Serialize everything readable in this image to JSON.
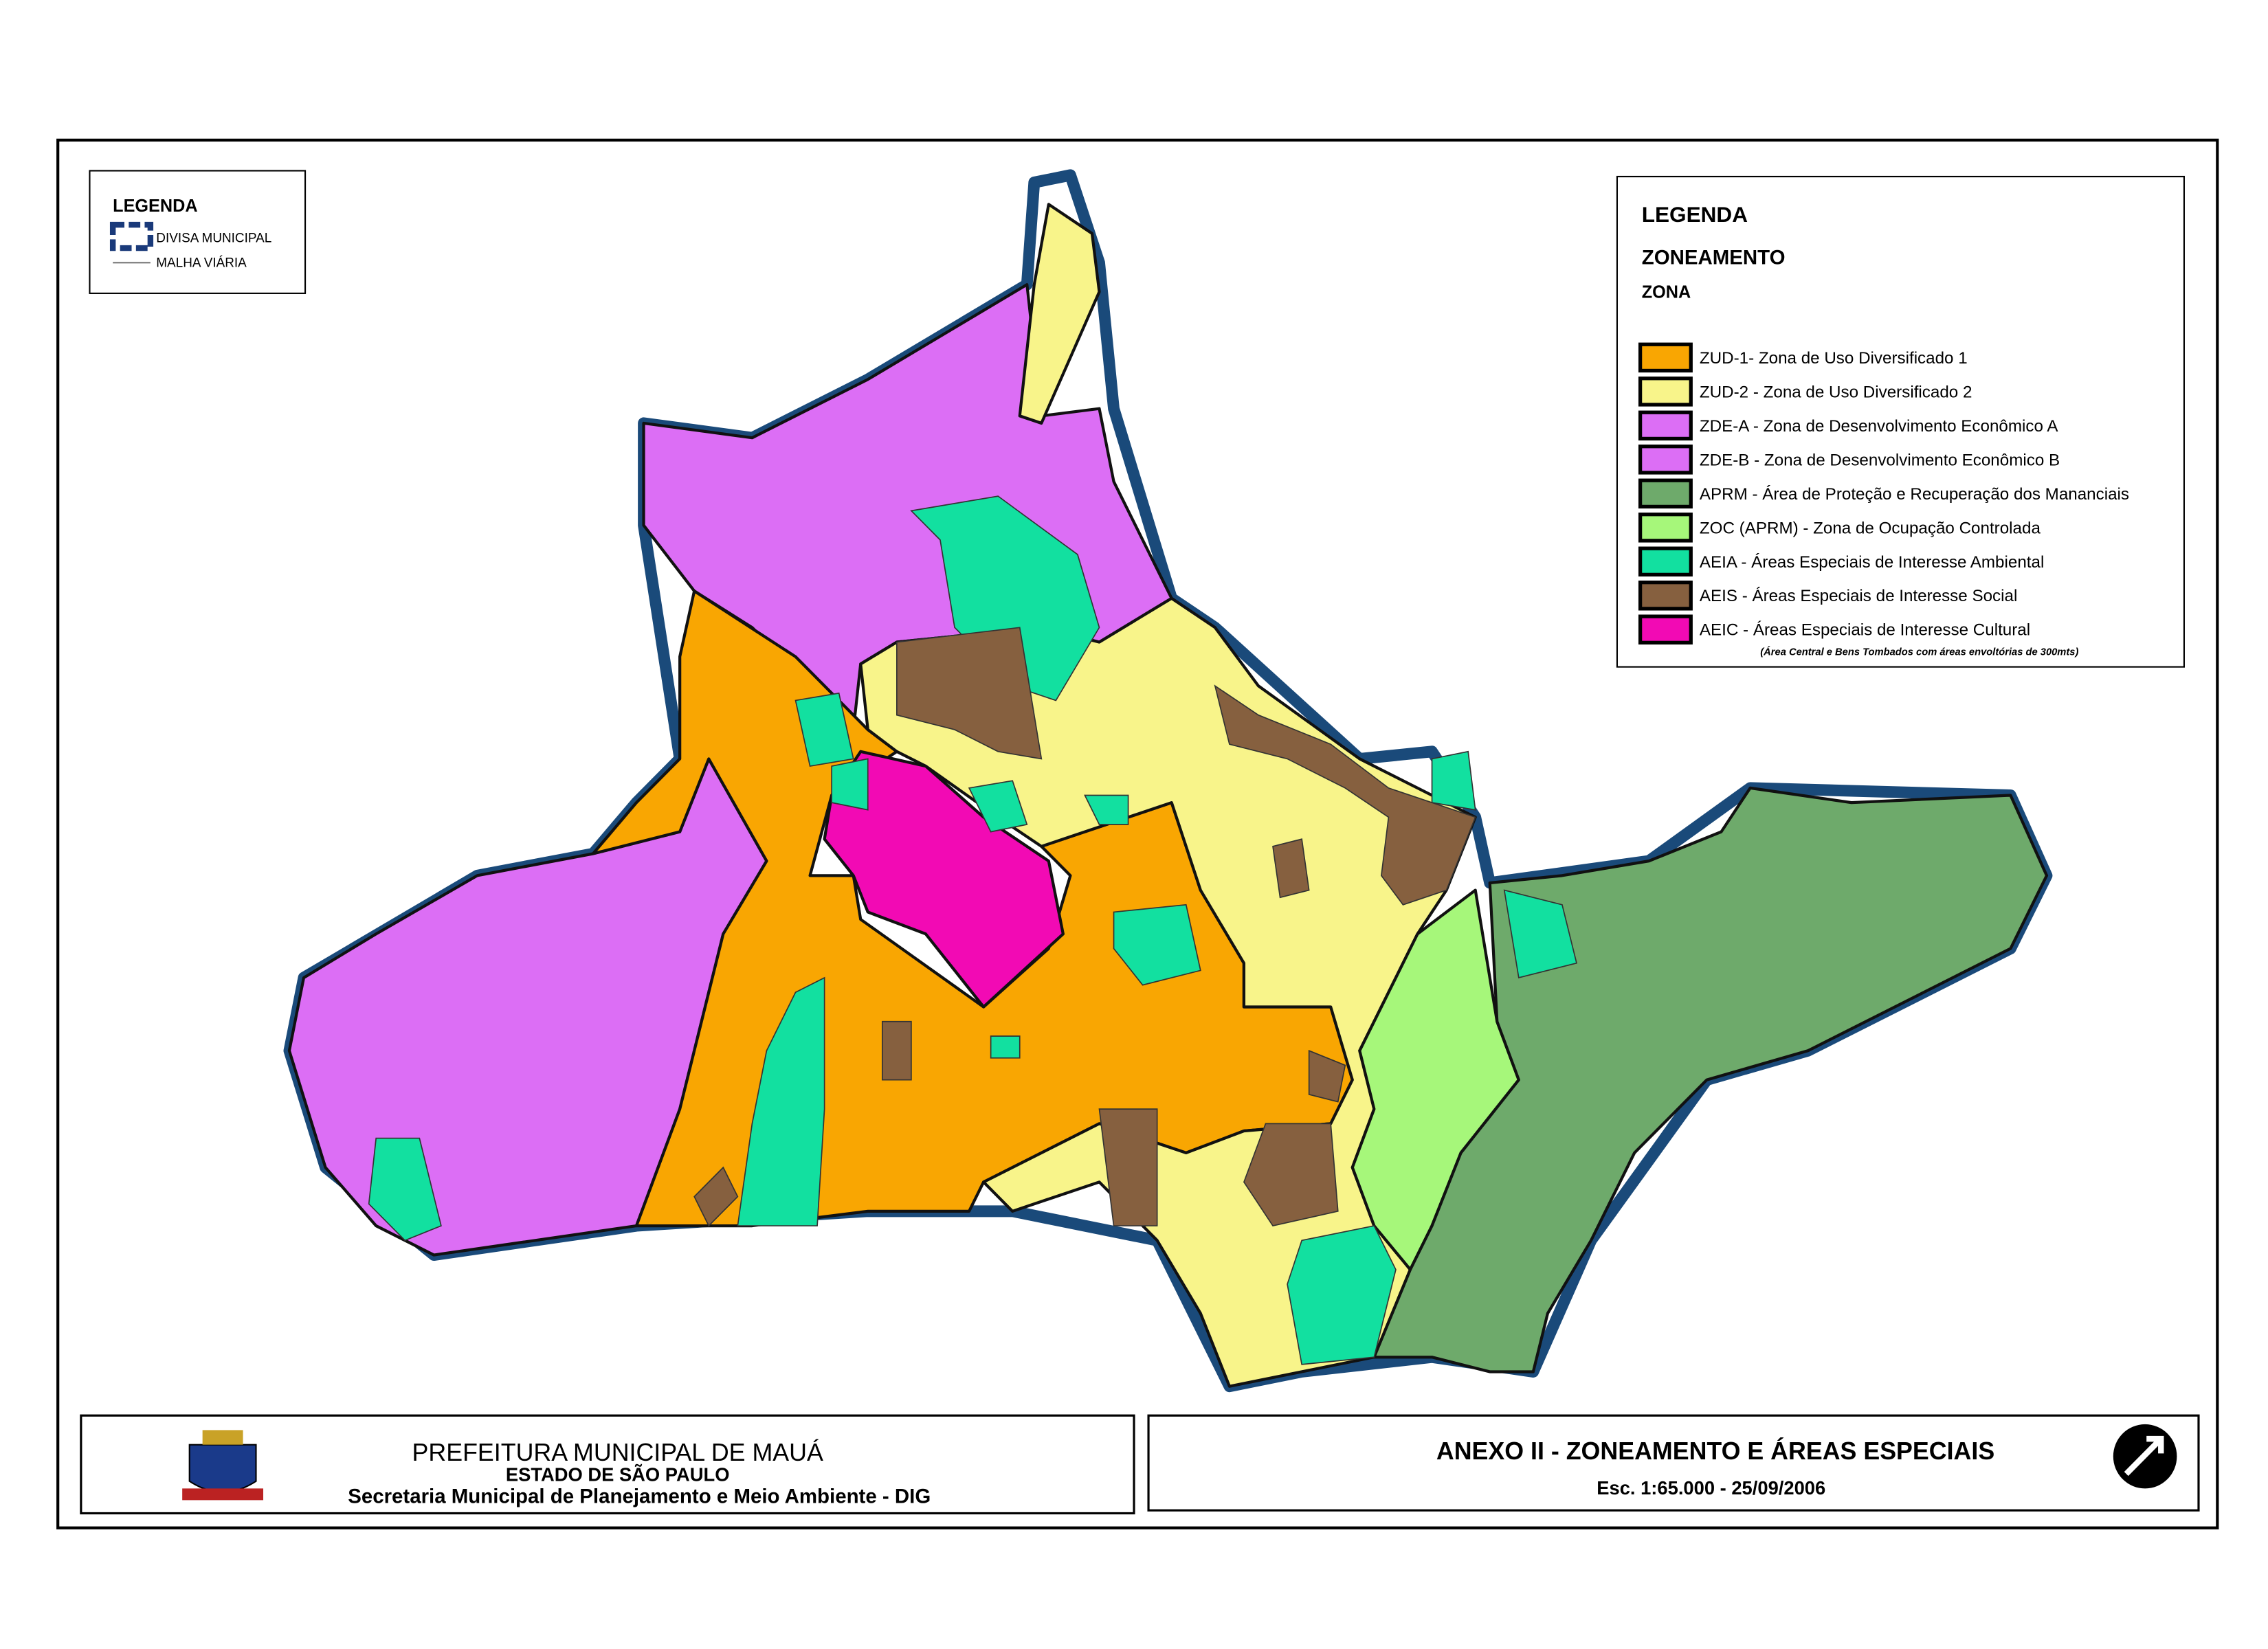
{
  "left_legend": {
    "title": "LEGENDA",
    "items": [
      "DIVISA MUNICIPAL",
      "MALHA VIÁRIA"
    ]
  },
  "right_legend": {
    "title": "LEGENDA",
    "heading": "ZONEAMENTO",
    "subheading": "ZONA",
    "items": [
      {
        "label": "ZUD-1- Zona de Uso Diversificado 1",
        "color": "#f9a602"
      },
      {
        "label": "ZUD-2 - Zona de Uso Diversificado 2",
        "color": "#f8f48a"
      },
      {
        "label": "ZDE-A - Zona de Desenvolvimento Econômico A",
        "color": "#dc6ef5"
      },
      {
        "label": "ZDE-B - Zona de Desenvolvimento Econômico B",
        "color": "#dc6ef5"
      },
      {
        "label": "APRM - Área de Proteção e Recuperação dos Mananciais",
        "color": "#6eaa6b"
      },
      {
        "label": "ZOC (APRM) - Zona de Ocupação Controlada",
        "color": "#a6f77a"
      },
      {
        "label": "AEIA - Áreas Especiais de Interesse Ambiental",
        "color": "#12e0a0"
      },
      {
        "label": "AEIS - Áreas Especiais de Interesse Social",
        "color": "#86603f"
      },
      {
        "label": "AEIC - Áreas Especiais de Interesse Cultural",
        "color": "#f20ab4"
      }
    ],
    "note": "(Área Central e Bens Tombados com  áreas envoltórias de 300mts)"
  },
  "footer": {
    "organization": "PREFEITURA  MUNICIPAL DE MAUÁ",
    "state": "ESTADO DE SÃO PAULO",
    "department": "Secretaria Municipal de Planejamento e Meio Ambiente - DIG",
    "title": "ANEXO II - ZONEAMENTO E ÁREAS ESPECIAIS",
    "scale": "Esc. 1:65.000 - 25/09/2006"
  }
}
